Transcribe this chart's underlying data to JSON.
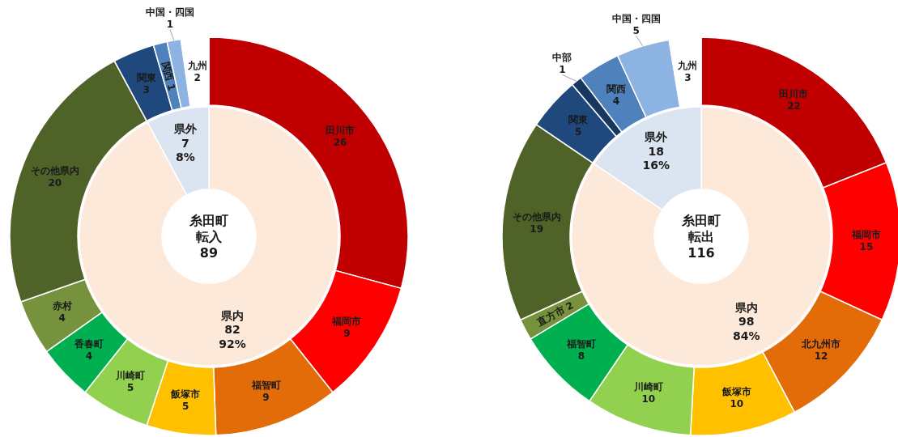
{
  "chart_data": [
    {
      "type": "donut",
      "categories": [
        "田川市",
        "福岡市",
        "福智町",
        "飯塚市",
        "川崎町",
        "香春町",
        "赤村",
        "その他県内",
        "関東",
        "関西",
        "中国・四国",
        "九州"
      ],
      "values": [
        26,
        9,
        9,
        5,
        5,
        4,
        4,
        20,
        3,
        1,
        1,
        2
      ],
      "colors": [
        "#c00000",
        "#ff0000",
        "#e36c09",
        "#ffc000",
        "#92d050",
        "#00b050",
        "#76923c",
        "#4f6228",
        "#1f497d",
        "#4f81bd",
        "#8db3e2",
        "#ffffff"
      ],
      "data_labels": true
    },
    {
      "type": "donut",
      "annotations": [
        "糸田町",
        "転入",
        "89"
      ],
      "categories": [
        "県内",
        "県外"
      ],
      "values": [
        82,
        7
      ],
      "colors": [
        "#fde9d9",
        "#dbe5f1"
      ],
      "value_labels": [
        "82\n92%",
        "7\n8%"
      ]
    },
    {
      "type": "donut",
      "categories": [
        "田川市",
        "福岡市",
        "北九州市",
        "飯塚市",
        "川崎町",
        "福智町",
        "直方市",
        "その他県内",
        "関東",
        "中部",
        "関西",
        "中国・四国",
        "九州"
      ],
      "values": [
        22,
        15,
        12,
        10,
        10,
        8,
        2,
        19,
        5,
        1,
        4,
        5,
        3
      ],
      "colors": [
        "#c00000",
        "#ff0000",
        "#e36c09",
        "#ffc000",
        "#92d050",
        "#00b050",
        "#76923c",
        "#4f6228",
        "#1f497d",
        "#17375e",
        "#4f81bd",
        "#8db3e2",
        "#ffffff"
      ],
      "data_labels": true
    },
    {
      "type": "donut",
      "annotations": [
        "糸田町",
        "転出",
        "116"
      ],
      "categories": [
        "県内",
        "県外"
      ],
      "values": [
        98,
        18
      ],
      "colors": [
        "#fde9d9",
        "#dbe5f1"
      ],
      "value_labels": [
        "98\n84%",
        "18\n16%"
      ]
    }
  ]
}
